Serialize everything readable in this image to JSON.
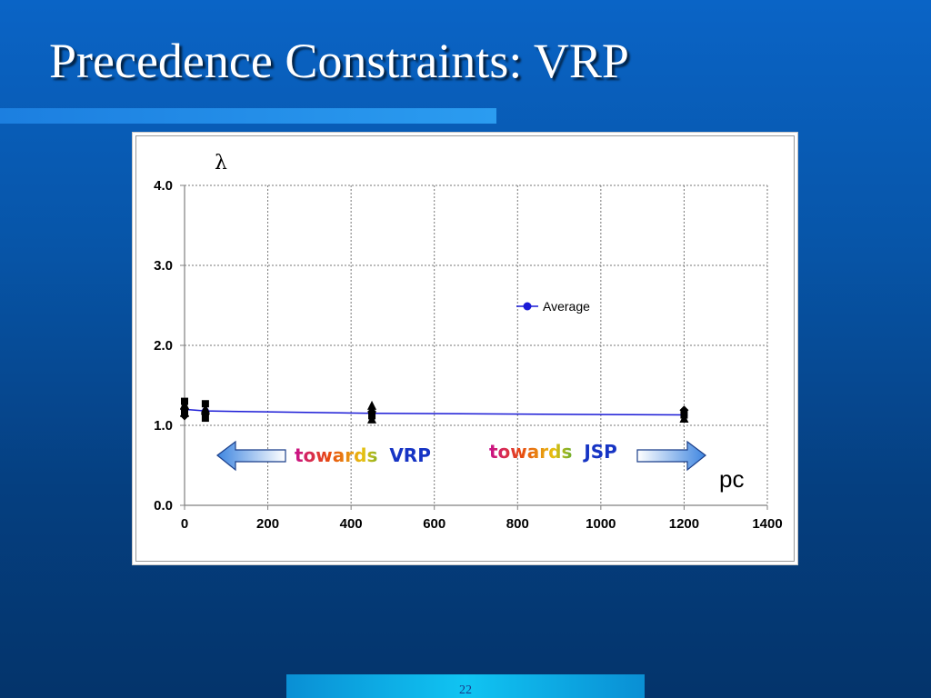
{
  "slide": {
    "title": "Precedence Constraints: VRP",
    "page_number": "22"
  },
  "chart_data": {
    "type": "scatter",
    "ylabel": "λ",
    "xlabel": "pc",
    "xlim": [
      0,
      1400
    ],
    "ylim": [
      0,
      4
    ],
    "xticks": [
      "0",
      "200",
      "400",
      "600",
      "800",
      "1000",
      "1200",
      "1400"
    ],
    "yticks": [
      "0.0",
      "1.0",
      "2.0",
      "3.0",
      "4.0"
    ],
    "grid": true,
    "legend": {
      "position": "upper-right",
      "entries": [
        "Average"
      ]
    },
    "series": [
      {
        "name": "Average",
        "color": "#1a1ad6",
        "x": [
          0,
          50,
          450,
          1200
        ],
        "y": [
          1.2,
          1.18,
          1.15,
          1.13
        ]
      }
    ],
    "scatter_points": {
      "x": [
        0,
        0,
        0,
        0,
        0,
        0,
        50,
        50,
        50,
        50,
        450,
        450,
        450,
        450,
        1200,
        1200,
        1200
      ],
      "y": [
        1.3,
        1.25,
        1.2,
        1.18,
        1.15,
        1.12,
        1.27,
        1.2,
        1.14,
        1.09,
        1.24,
        1.17,
        1.12,
        1.07,
        1.19,
        1.13,
        1.08
      ]
    },
    "annotations": [
      {
        "text_a": "towards",
        "text_b": "VRP",
        "direction": "left"
      },
      {
        "text_a": "towards",
        "text_b": "JSP",
        "direction": "right"
      }
    ]
  }
}
